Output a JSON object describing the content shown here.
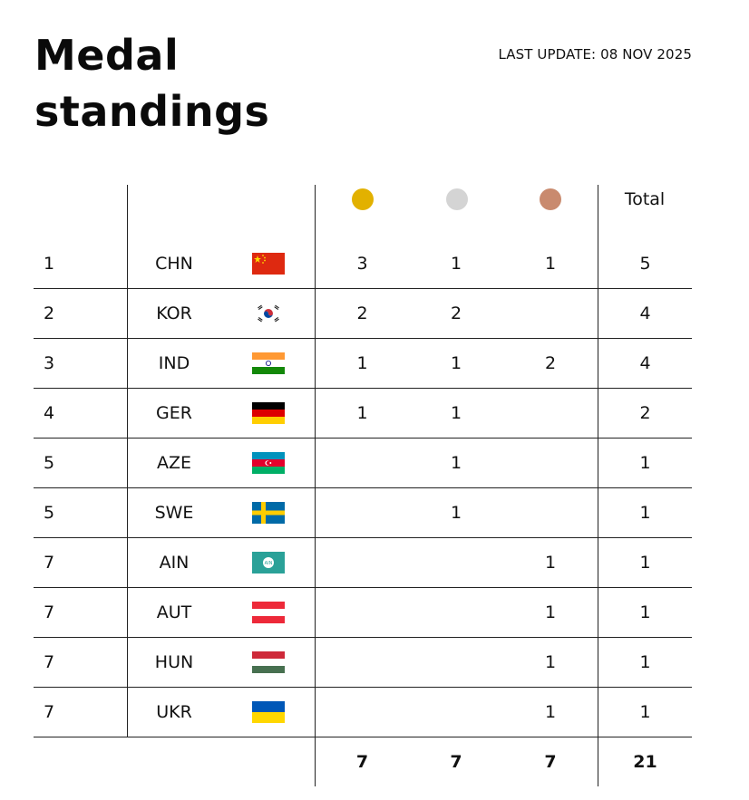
{
  "header": {
    "title_line1": "Medal",
    "title_line2": "standings",
    "last_update": "LAST UPDATE: 08 NOV 2025"
  },
  "table": {
    "columns": {
      "gold_color": "#E2B100",
      "silver_color": "#D4D4D4",
      "bronze_color": "#C98A6E",
      "total_label": "Total"
    },
    "rows": [
      {
        "rank": "1",
        "noc": "CHN",
        "flag": "china-flag",
        "gold": "3",
        "silver": "1",
        "bronze": "1",
        "total": "5"
      },
      {
        "rank": "2",
        "noc": "KOR",
        "flag": "korea-flag",
        "gold": "2",
        "silver": "2",
        "bronze": "",
        "total": "4"
      },
      {
        "rank": "3",
        "noc": "IND",
        "flag": "india-flag",
        "gold": "1",
        "silver": "1",
        "bronze": "2",
        "total": "4"
      },
      {
        "rank": "4",
        "noc": "GER",
        "flag": "germany-flag",
        "gold": "1",
        "silver": "1",
        "bronze": "",
        "total": "2"
      },
      {
        "rank": "5",
        "noc": "AZE",
        "flag": "azerbaijan-flag",
        "gold": "",
        "silver": "1",
        "bronze": "",
        "total": "1"
      },
      {
        "rank": "5",
        "noc": "SWE",
        "flag": "sweden-flag",
        "gold": "",
        "silver": "1",
        "bronze": "",
        "total": "1"
      },
      {
        "rank": "7",
        "noc": "AIN",
        "flag": "ain-flag",
        "gold": "",
        "silver": "",
        "bronze": "1",
        "total": "1"
      },
      {
        "rank": "7",
        "noc": "AUT",
        "flag": "austria-flag",
        "gold": "",
        "silver": "",
        "bronze": "1",
        "total": "1"
      },
      {
        "rank": "7",
        "noc": "HUN",
        "flag": "hungary-flag",
        "gold": "",
        "silver": "",
        "bronze": "1",
        "total": "1"
      },
      {
        "rank": "7",
        "noc": "UKR",
        "flag": "ukraine-flag",
        "gold": "",
        "silver": "",
        "bronze": "1",
        "total": "1"
      }
    ],
    "totals": {
      "gold": "7",
      "silver": "7",
      "bronze": "7",
      "total": "21"
    }
  }
}
